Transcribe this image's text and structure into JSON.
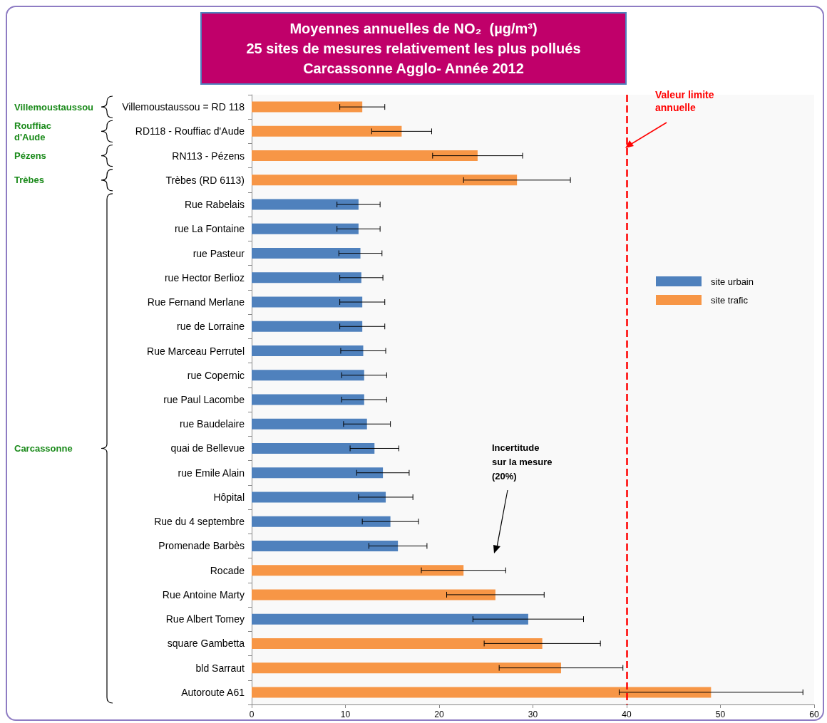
{
  "chart_data": {
    "type": "bar",
    "orientation": "horizontal",
    "title": "Moyennes annuelles de NO₂  (µg/m³)\n25 sites de mesures relativement les plus pollués\nCarcassonne Agglo- Année 2012",
    "categories": [
      "Villemoustaussou = RD 118",
      "RD118 - Rouffiac d'Aude",
      "RN113 - Pézens",
      "Trèbes (RD 6113)",
      "Rue Rabelais",
      "rue La Fontaine",
      "rue Pasteur",
      "rue Hector Berlioz",
      "Rue Fernand Merlane",
      "rue de Lorraine",
      "Rue Marceau Perrutel",
      "rue Copernic",
      "rue Paul Lacombe",
      "rue Baudelaire",
      "quai de Bellevue",
      "rue Emile Alain",
      "Hôpital",
      "Rue du 4 septembre",
      "Promenade Barbès",
      "Rocade",
      "Rue Antoine Marty",
      "Rue Albert Tomey",
      "square Gambetta",
      "bld Sarraut",
      "Autoroute A61"
    ],
    "series": [
      {
        "name": "site urbain",
        "color": "#4f81bd",
        "values": [
          null,
          null,
          null,
          null,
          11.4,
          11.4,
          11.6,
          11.7,
          11.8,
          11.8,
          11.9,
          12.0,
          12.0,
          12.3,
          13.1,
          14.0,
          14.3,
          14.8,
          15.6,
          null,
          null,
          29.5,
          null,
          null,
          null
        ],
        "errors": [
          null,
          null,
          null,
          null,
          2.3,
          2.3,
          2.3,
          2.3,
          2.4,
          2.4,
          2.4,
          2.4,
          2.4,
          2.5,
          2.6,
          2.8,
          2.9,
          3.0,
          3.1,
          null,
          null,
          5.9,
          null,
          null,
          null
        ]
      },
      {
        "name": "site trafic",
        "color": "#f79646",
        "values": [
          11.8,
          16.0,
          24.1,
          28.3,
          null,
          null,
          null,
          null,
          null,
          null,
          null,
          null,
          null,
          null,
          null,
          null,
          null,
          null,
          null,
          22.6,
          26.0,
          null,
          31.0,
          33.0,
          49.0
        ],
        "errors": [
          2.4,
          3.2,
          4.8,
          5.7,
          null,
          null,
          null,
          null,
          null,
          null,
          null,
          null,
          null,
          null,
          null,
          null,
          null,
          null,
          null,
          4.5,
          5.2,
          null,
          6.2,
          6.6,
          9.8
        ]
      }
    ],
    "xlim": [
      0,
      60
    ],
    "xticks": [
      0,
      10,
      20,
      30,
      40,
      50,
      60
    ],
    "grid": false,
    "legend": "right",
    "ref_lines": [
      {
        "axis": "x",
        "value": 40,
        "label": "Valeur limite annuelle",
        "color": "#ff0000",
        "line_style": "dashed"
      }
    ],
    "annotations": [
      "Villemoustaussou",
      "Rouffiac\nd'Aude",
      "Pézens",
      "Trèbes",
      "Carcassonne",
      "Incertitude\nsur la mesure\n(20%)"
    ]
  }
}
